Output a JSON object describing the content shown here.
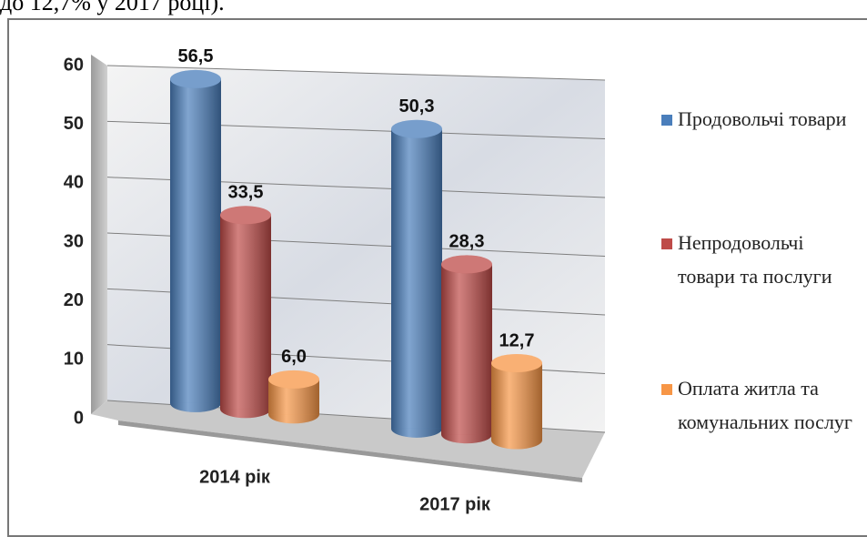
{
  "page_text": "до 12,7% у 2017 році).",
  "chart_data": {
    "type": "bar3d",
    "categories": [
      "2014 рік",
      "2017 рік"
    ],
    "series": [
      {
        "name": "Продовольчі товари",
        "color": "#4a7ebb",
        "values": [
          56.5,
          50.3
        ],
        "value_labels": [
          "56,5",
          "50,3"
        ]
      },
      {
        "name": "Непродовольчі товари та послуги",
        "color": "#be4b48",
        "values": [
          33.5,
          28.3
        ],
        "value_labels": [
          "33,5",
          "28,3"
        ]
      },
      {
        "name": "Оплата житла та комунальних послуг",
        "color": "#f79646",
        "values": [
          6.0,
          12.7
        ],
        "value_labels": [
          "6,0",
          "12,7"
        ]
      }
    ],
    "ylim": [
      0,
      60
    ],
    "yticks": [
      0,
      10,
      20,
      30,
      40,
      50,
      60
    ],
    "grid": true,
    "legend": "right"
  }
}
